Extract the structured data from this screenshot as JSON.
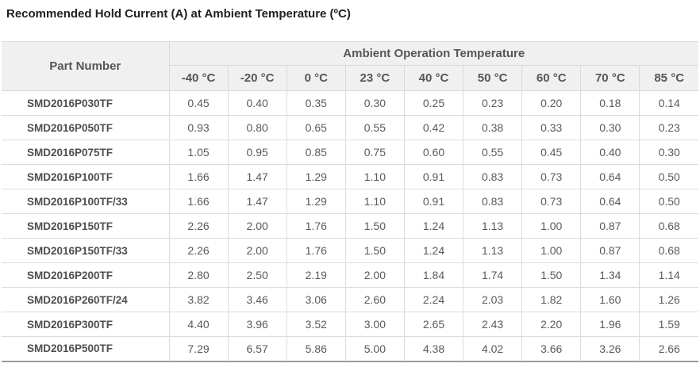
{
  "title": "Recommended Hold Current (A) at Ambient Temperature (ºC)",
  "table": {
    "part_number_header": "Part Number",
    "group_header": "Ambient Operation Temperature",
    "temperature_columns": [
      "-40 °C",
      "-20 °C",
      "0 °C",
      "23 °C",
      "40 °C",
      "50 °C",
      "60 °C",
      "70 °C",
      "85 °C"
    ],
    "rows": [
      {
        "part_number": "SMD2016P030TF",
        "values": [
          "0.45",
          "0.40",
          "0.35",
          "0.30",
          "0.25",
          "0.23",
          "0.20",
          "0.18",
          "0.14"
        ]
      },
      {
        "part_number": "SMD2016P050TF",
        "values": [
          "0.93",
          "0.80",
          "0.65",
          "0.55",
          "0.42",
          "0.38",
          "0.33",
          "0.30",
          "0.23"
        ]
      },
      {
        "part_number": "SMD2016P075TF",
        "values": [
          "1.05",
          "0.95",
          "0.85",
          "0.75",
          "0.60",
          "0.55",
          "0.45",
          "0.40",
          "0.30"
        ]
      },
      {
        "part_number": "SMD2016P100TF",
        "values": [
          "1.66",
          "1.47",
          "1.29",
          "1.10",
          "0.91",
          "0.83",
          "0.73",
          "0.64",
          "0.50"
        ]
      },
      {
        "part_number": "SMD2016P100TF/33",
        "values": [
          "1.66",
          "1.47",
          "1.29",
          "1.10",
          "0.91",
          "0.83",
          "0.73",
          "0.64",
          "0.50"
        ]
      },
      {
        "part_number": "SMD2016P150TF",
        "values": [
          "2.26",
          "2.00",
          "1.76",
          "1.50",
          "1.24",
          "1.13",
          "1.00",
          "0.87",
          "0.68"
        ]
      },
      {
        "part_number": "SMD2016P150TF/33",
        "values": [
          "2.26",
          "2.00",
          "1.76",
          "1.50",
          "1.24",
          "1.13",
          "1.00",
          "0.87",
          "0.68"
        ]
      },
      {
        "part_number": "SMD2016P200TF",
        "values": [
          "2.80",
          "2.50",
          "2.19",
          "2.00",
          "1.84",
          "1.74",
          "1.50",
          "1.34",
          "1.14"
        ]
      },
      {
        "part_number": "SMD2016P260TF/24",
        "values": [
          "3.82",
          "3.46",
          "3.06",
          "2.60",
          "2.24",
          "2.03",
          "1.82",
          "1.60",
          "1.26"
        ]
      },
      {
        "part_number": "SMD2016P300TF",
        "values": [
          "4.40",
          "3.96",
          "3.52",
          "3.00",
          "2.65",
          "2.43",
          "2.20",
          "1.96",
          "1.59"
        ]
      },
      {
        "part_number": "SMD2016P500TF",
        "values": [
          "7.29",
          "6.57",
          "5.86",
          "5.00",
          "4.38",
          "4.02",
          "3.66",
          "3.26",
          "2.66"
        ]
      }
    ]
  },
  "colors": {
    "header_background": "#f0f0f0",
    "header_text": "#55565a",
    "cell_border": "#dcdcdc",
    "table_bottom_border": "#9c9c9c",
    "title_text": "#212121",
    "value_text": "#595a5c"
  }
}
